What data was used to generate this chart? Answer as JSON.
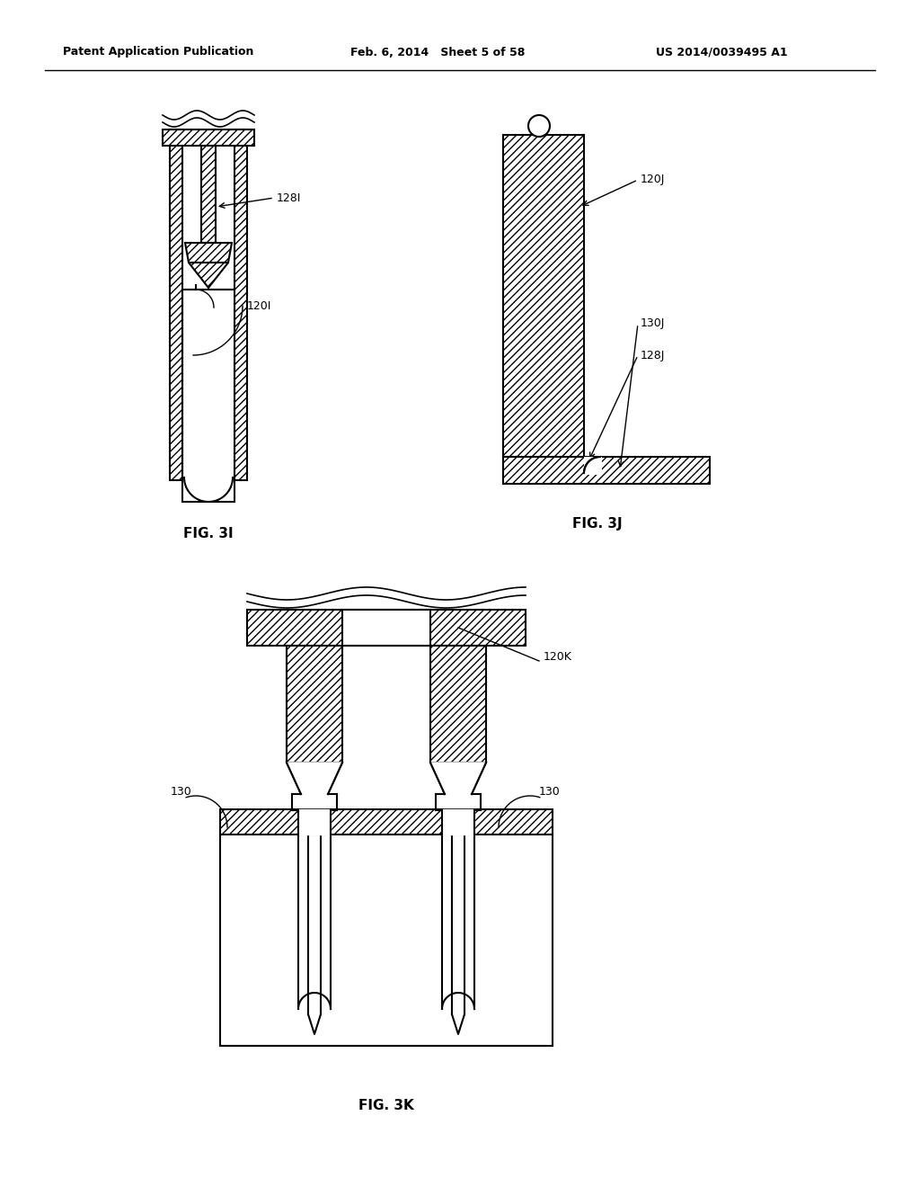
{
  "bg_color": "#ffffff",
  "header_left": "Patent Application Publication",
  "header_mid": "Feb. 6, 2014   Sheet 5 of 58",
  "header_right": "US 2014/0039495 A1",
  "fig3i_label": "FIG. 3I",
  "fig3j_label": "FIG. 3J",
  "fig3k_label": "FIG. 3K",
  "line_color": "#000000",
  "label_128I": "128I",
  "label_120I": "120I",
  "label_120J": "120J",
  "label_130J": "130J",
  "label_128J": "128J",
  "label_120K": "120K",
  "label_130_left": "130",
  "label_130_right": "130"
}
